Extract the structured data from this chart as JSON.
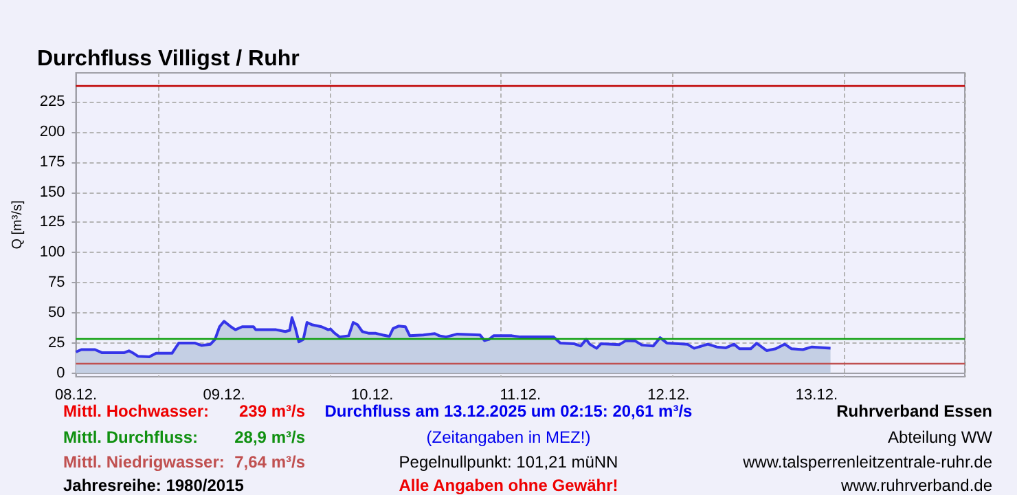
{
  "chart_data": {
    "type": "area",
    "title": "Durchfluss Villigst / Ruhr",
    "ylabel": "Q [m³/s]",
    "x": [
      "2025-12-08T00:00",
      "2025-12-08T00:53",
      "2025-12-08T03:05",
      "2025-12-08T04:11",
      "2025-12-08T07:51",
      "2025-12-08T08:35",
      "2025-12-08T09:19",
      "2025-12-08T10:03",
      "2025-12-08T11:53",
      "2025-12-08T13:00",
      "2025-12-08T15:34",
      "2025-12-08T16:40",
      "2025-12-08T19:14",
      "2025-12-08T20:20",
      "2025-12-08T21:48",
      "2025-12-08T22:32",
      "2025-12-08T23:16",
      "2025-12-09T00:00",
      "2025-12-09T01:06",
      "2025-12-09T01:50",
      "2025-12-09T02:56",
      "2025-12-09T04:46",
      "2025-12-09T05:08",
      "2025-12-09T08:26",
      "2025-12-09T09:55",
      "2025-12-09T10:38",
      "2025-12-09T11:00",
      "2025-12-09T11:31",
      "2025-12-09T12:07",
      "2025-12-09T12:50",
      "2025-12-09T13:26",
      "2025-12-09T14:19",
      "2025-12-09T15:47",
      "2025-12-09T16:53",
      "2025-12-09T17:15",
      "2025-12-09T17:50",
      "2025-12-09T18:43",
      "2025-12-09T20:11",
      "2025-12-09T20:55",
      "2025-12-09T21:39",
      "2025-12-09T22:23",
      "2025-12-09T23:29",
      "2025-12-10T00:35",
      "2025-12-10T01:41",
      "2025-12-10T02:47",
      "2025-12-10T03:23",
      "2025-12-10T04:16",
      "2025-12-10T05:22",
      "2025-12-10T06:05",
      "2025-12-10T08:17",
      "2025-12-10T10:08",
      "2025-12-10T10:52",
      "2025-12-10T11:58",
      "2025-12-10T13:47",
      "2025-12-10T17:28",
      "2025-12-10T18:12",
      "2025-12-10T18:56",
      "2025-12-10T19:40",
      "2025-12-10T22:37",
      "2025-12-11T00:00",
      "2025-12-11T05:22",
      "2025-12-11T06:28",
      "2025-12-11T08:40",
      "2025-12-11T09:47",
      "2025-12-11T10:40",
      "2025-12-11T11:15",
      "2025-12-11T12:21",
      "2025-12-11T13:05",
      "2025-12-11T16:01",
      "2025-12-11T17:07",
      "2025-12-11T18:36",
      "2025-12-11T19:42",
      "2025-12-11T21:32",
      "2025-12-11T22:38",
      "2025-12-11T23:44",
      "2025-12-12T03:03",
      "2025-12-12T04:09",
      "2025-12-12T06:22",
      "2025-12-12T07:50",
      "2025-12-12T09:18",
      "2025-12-12T10:37",
      "2025-12-12T11:30",
      "2025-12-12T13:20",
      "2025-12-12T14:17",
      "2025-12-12T15:54",
      "2025-12-12T17:22",
      "2025-12-12T18:50",
      "2025-12-12T19:56",
      "2025-12-12T21:46",
      "2025-12-12T23:14",
      "2025-12-13T02:15"
    ],
    "series": [
      {
        "color": "#3535e8",
        "values": [
          17.5,
          19.5,
          19.5,
          17,
          17,
          18.5,
          16.5,
          14,
          13.5,
          16.5,
          16.5,
          25,
          25,
          23,
          24,
          28,
          38.5,
          43,
          38.5,
          36,
          38.5,
          38.5,
          36,
          36,
          34.5,
          35.5,
          46,
          38,
          26,
          28,
          42,
          40,
          38.5,
          36,
          36.6,
          33.5,
          30,
          31,
          42,
          40,
          34.5,
          33,
          33,
          31.6,
          30.5,
          37,
          39,
          38.5,
          31,
          31.6,
          32.8,
          31,
          30,
          32.4,
          31.6,
          27,
          28,
          31,
          31,
          30,
          30,
          25,
          24.4,
          22.5,
          28,
          24,
          20.6,
          24.4,
          23.6,
          27,
          26.7,
          23.3,
          22.5,
          29.4,
          25,
          24,
          20.6,
          24,
          21.7,
          21,
          24,
          20.2,
          20.2,
          24.8,
          18.7,
          20.2,
          24,
          20.2,
          19.5,
          21.7,
          20.61
        ]
      }
    ],
    "xlim": [
      "2025-12-08T00:00",
      "2025-12-14T00:00"
    ],
    "xticks": [
      {
        "value": "2025-12-08T00:00",
        "label": "08.12."
      },
      {
        "value": "2025-12-09T00:00",
        "label": "09.12."
      },
      {
        "value": "2025-12-10T00:00",
        "label": "10.12."
      },
      {
        "value": "2025-12-11T00:00",
        "label": "11.12."
      },
      {
        "value": "2025-12-12T00:00",
        "label": "12.12."
      },
      {
        "value": "2025-12-13T00:00",
        "label": "13.12."
      }
    ],
    "ylim": [
      -3,
      249
    ],
    "yticks": [
      0,
      25,
      50,
      75,
      100,
      125,
      150,
      175,
      200,
      225
    ],
    "grid": true,
    "ref_lines": [
      {
        "axis": "y",
        "value": 239,
        "color": "#c00000"
      },
      {
        "axis": "y",
        "value": 28.9,
        "color": "#10a010"
      },
      {
        "axis": "y",
        "value": 7.64,
        "color": "#c05050"
      }
    ],
    "annotations": [
      "Mittl. Hochwasser:",
      "239 m³/s",
      "Mittl. Durchfluss:",
      "28,9 m³/s",
      "Mittl. Niedrigwasser:",
      "7,64 m³/s",
      "Jahresreihe: 1980/2015",
      "Durchfluss am 13.12.2025 um 02:15: 20,61 m³/s",
      "(Zeitangaben in MEZ!)",
      "Pegelnullpunkt: 101,21 müNN",
      "Alle Angaben ohne Gewähr!",
      "Ruhrverband Essen",
      "Abteilung WW",
      "www.talsperrenleitzentrale-ruhr.de",
      "www.ruhrverband.de"
    ]
  }
}
